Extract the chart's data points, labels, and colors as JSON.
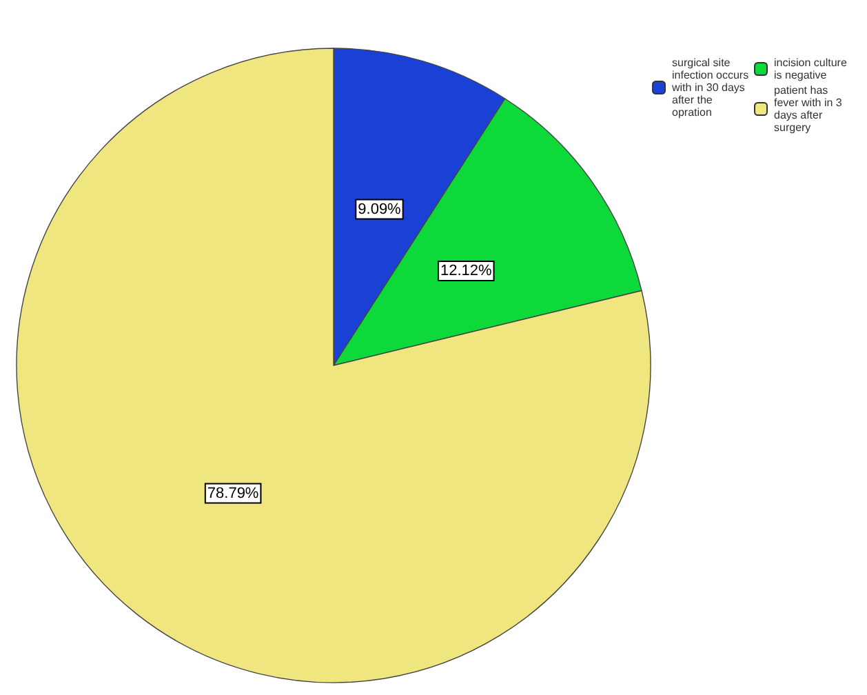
{
  "chart_data": {
    "type": "pie",
    "categories": [
      "surgical site infection occurs with in 30 days after the opration",
      "incision culture is negative",
      "patient has fever with in 3 days after surgery"
    ],
    "values": [
      9.09,
      12.12,
      78.79
    ],
    "colors": [
      "#1a41d6",
      "#0dd93a",
      "#f0e680"
    ],
    "value_labels": [
      "9.09%",
      "12.12%",
      "78.79%"
    ],
    "legend": "top right"
  }
}
